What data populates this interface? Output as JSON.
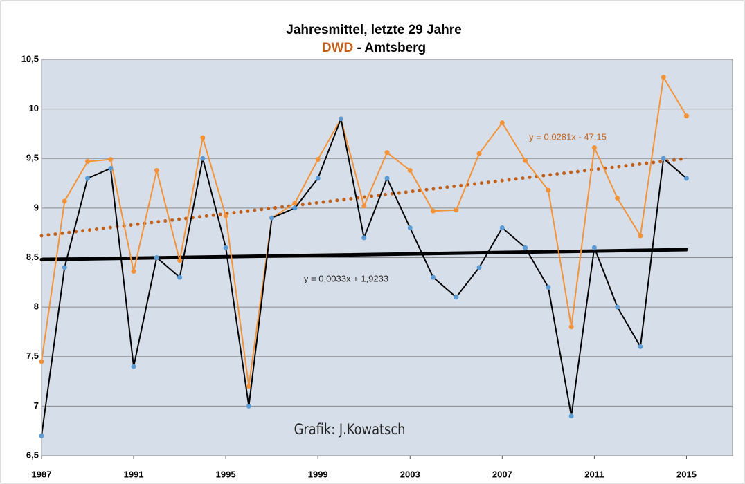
{
  "chart_data": {
    "type": "line",
    "title": "Jahresmittel, letzte 29 Jahre",
    "subtitle_parts": [
      {
        "text": "DWD",
        "color": "#c0601a"
      },
      {
        "text": " - Amtsberg",
        "color": "#000000"
      }
    ],
    "annotation": "Grafik: J.Kowatsch",
    "x": [
      1987,
      1988,
      1989,
      1990,
      1991,
      1992,
      1993,
      1994,
      1995,
      1996,
      1997,
      1998,
      1999,
      2000,
      2001,
      2002,
      2003,
      2004,
      2005,
      2006,
      2007,
      2008,
      2009,
      2010,
      2011,
      2012,
      2013,
      2014,
      2015
    ],
    "series": [
      {
        "color": "#f39237",
        "marker_color": "#f39237",
        "values": [
          7.45,
          9.07,
          9.47,
          9.49,
          8.36,
          9.38,
          8.47,
          9.71,
          8.92,
          7.2,
          8.9,
          9.05,
          9.49,
          9.9,
          9.02,
          9.56,
          9.38,
          8.97,
          8.98,
          9.55,
          9.86,
          9.48,
          9.18,
          7.8,
          9.61,
          9.1,
          8.72,
          10.32,
          9.93
        ]
      },
      {
        "color": "#000000",
        "marker_color": "#5b9bd5",
        "values": [
          6.7,
          8.4,
          9.3,
          9.4,
          7.4,
          8.5,
          8.3,
          9.5,
          8.6,
          7.0,
          8.9,
          9.0,
          9.3,
          9.9,
          8.7,
          9.3,
          8.8,
          8.3,
          8.1,
          8.4,
          8.8,
          8.6,
          8.2,
          6.9,
          8.6,
          8.0,
          7.6,
          9.5,
          9.3
        ]
      }
    ],
    "trendlines": [
      {
        "color": "#c0601a",
        "dotted": true,
        "x": [
          1987,
          2015
        ],
        "values": [
          8.72,
          9.5
        ],
        "label": "y = 0,0281x - 47,15"
      },
      {
        "color": "#000000",
        "dotted": false,
        "x": [
          1987,
          2015
        ],
        "values": [
          8.48,
          8.58
        ],
        "label": "y = 0,0033x + 1,9233"
      }
    ],
    "xlim": [
      1987,
      2017
    ],
    "xticks": [
      1987,
      1991,
      1995,
      1999,
      2003,
      2007,
      2011,
      2015
    ],
    "ylim": [
      6.5,
      10.5
    ],
    "yticks": [
      {
        "value": 6.5,
        "label": "6,5"
      },
      7,
      {
        "value": 7.5,
        "label": "7,5"
      },
      8,
      {
        "value": 8.5,
        "label": "8,5"
      },
      9,
      {
        "value": 9.5,
        "label": "9,5"
      },
      10,
      {
        "value": 10.5,
        "label": "10,5"
      }
    ],
    "grid": true
  }
}
